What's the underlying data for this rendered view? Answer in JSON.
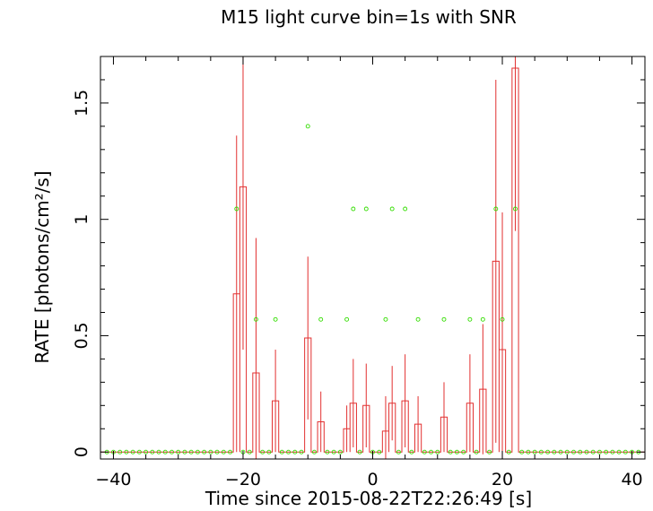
{
  "chart_data": {
    "type": "line",
    "title": "M15 light curve bin=1s with SNR",
    "xlabel": "Time since 2015-08-22T22:26:49 [s]",
    "ylabel": "RATE [photons/cm²/s]",
    "xlim": [
      -42,
      42
    ],
    "ylim": [
      -0.03,
      1.7
    ],
    "x_ticks": [
      -40,
      -20,
      0,
      20,
      40
    ],
    "x_tick_labels": [
      "−40",
      "−20",
      "0",
      "20",
      "40"
    ],
    "y_ticks": [
      0,
      0.5,
      1,
      1.5
    ],
    "y_tick_labels": [
      "0",
      "0.5",
      "1",
      "1.5"
    ],
    "grid": false,
    "colors": {
      "rate": "#e23030",
      "snr": "#33dd00",
      "axis": "#000000"
    },
    "series": [
      {
        "kind": "step-with-errors",
        "x": [
          -21.5,
          -20.5,
          -18.5,
          -15.5,
          -10.5,
          -8.5,
          -4.5,
          -3.5,
          -1.5,
          1.5,
          2.5,
          4.5,
          6.5,
          10.5,
          14.5,
          16.5,
          18.5,
          19.5,
          21.5
        ],
        "y": [
          0.68,
          1.14,
          0.34,
          0.22,
          0.49,
          0.13,
          0.1,
          0.21,
          0.2,
          0.09,
          0.21,
          0.22,
          0.12,
          0.15,
          0.21,
          0.27,
          0.82,
          0.44,
          1.65
        ],
        "err": [
          0.68,
          0.7,
          0.58,
          0.22,
          0.35,
          0.13,
          0.1,
          0.19,
          0.18,
          0.15,
          0.16,
          0.2,
          0.12,
          0.15,
          0.21,
          0.28,
          0.78,
          0.59,
          0.7
        ]
      },
      {
        "kind": "points",
        "x": [
          -10,
          -21,
          -18,
          -15,
          -8,
          -4,
          -3,
          -1,
          2,
          3,
          5,
          7,
          11,
          15,
          17,
          19,
          20,
          22
        ],
        "y": [
          1.4,
          1.045,
          0.57,
          0.57,
          0.57,
          0.57,
          1.045,
          1.045,
          0.57,
          1.045,
          1.045,
          0.57,
          0.57,
          0.57,
          0.57,
          1.045,
          0.57,
          1.045
        ],
        "baseline_from": -41,
        "baseline_to": 41,
        "baseline_y": 0
      }
    ]
  }
}
